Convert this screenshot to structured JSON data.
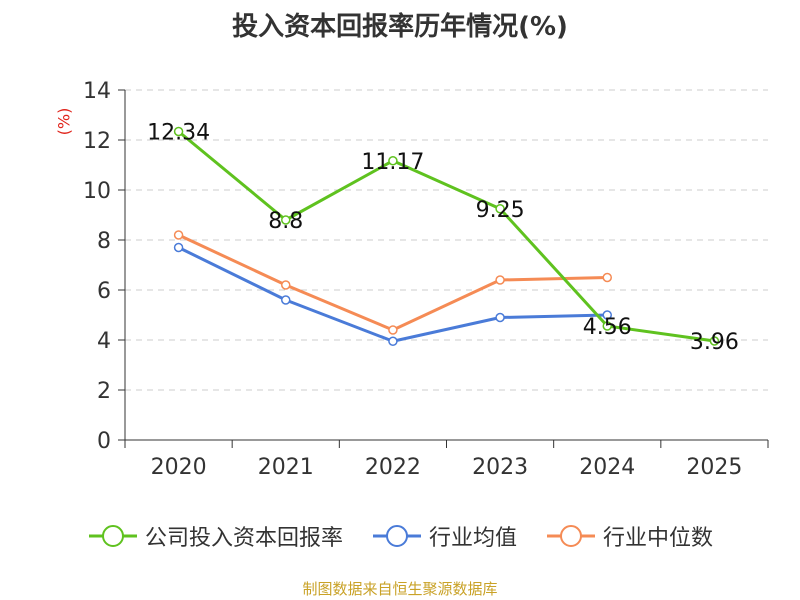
{
  "chart_data": {
    "type": "line",
    "title": "投入资本回报率历年情况(%)",
    "ylabel": "(%)",
    "xlabel": "",
    "categories": [
      "2020",
      "2021",
      "2022",
      "2023",
      "2024",
      "2025"
    ],
    "ylim": [
      0,
      14
    ],
    "yticks": [
      0,
      2,
      4,
      6,
      8,
      10,
      12,
      14
    ],
    "grid": true,
    "legend_position": "bottom",
    "series": [
      {
        "name": "公司投入资本回报率",
        "color": "#5fc21f",
        "values": [
          12.34,
          8.8,
          11.17,
          9.25,
          4.56,
          3.96
        ],
        "labels": [
          "12.34",
          "8.8",
          "11.17",
          "9.25",
          "4.56",
          "3.96"
        ]
      },
      {
        "name": "行业均值",
        "color": "#4a7bd8",
        "values": [
          7.7,
          5.6,
          3.95,
          4.9,
          5.0,
          null
        ]
      },
      {
        "name": "行业中位数",
        "color": "#f58b55",
        "values": [
          8.2,
          6.2,
          4.4,
          6.4,
          6.5,
          null
        ]
      }
    ],
    "source": "制图数据来自恒生聚源数据库"
  }
}
